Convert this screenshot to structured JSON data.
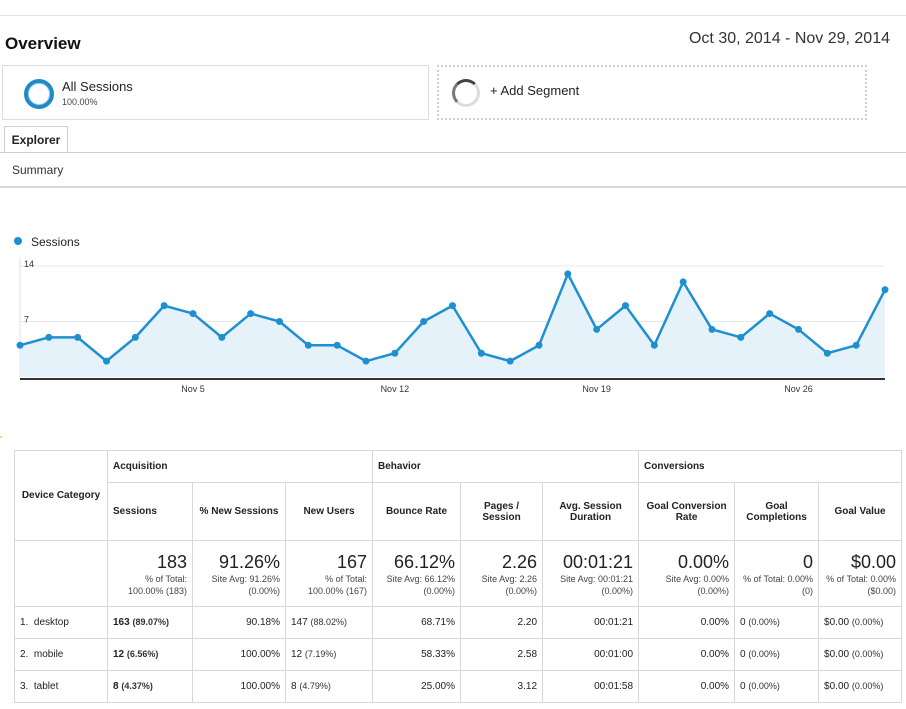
{
  "header": {
    "title": "Overview",
    "date_range": "Oct 30, 2014 - Nov 29, 2014"
  },
  "segments": [
    {
      "name": "All Sessions",
      "pct": "100.00%"
    },
    {
      "name": "+ Add Segment"
    }
  ],
  "tabs": {
    "explorer": "Explorer",
    "summary": "Summary"
  },
  "chart_data": {
    "type": "area",
    "series": [
      {
        "name": "Sessions",
        "values": [
          4,
          5,
          5,
          2,
          5,
          9,
          8,
          5,
          8,
          7,
          4,
          4,
          2,
          3,
          7,
          9,
          3,
          2,
          4,
          13,
          6,
          9,
          4,
          12,
          6,
          5,
          8,
          6,
          3,
          4,
          11
        ]
      }
    ],
    "x_tick_labels": [
      "Nov 5",
      "Nov 12",
      "Nov 19",
      "Nov 26"
    ],
    "x_tick_indices": [
      6,
      13,
      20,
      27
    ],
    "y_tick_labels": [
      "14",
      "7"
    ],
    "y_ticks": [
      14,
      7
    ],
    "ylim": [
      0,
      14
    ],
    "color": "#1e90d2",
    "fill": "#e6f2fa"
  },
  "table": {
    "device_category": "Device Category",
    "groups": {
      "acquisition": "Acquisition",
      "behavior": "Behavior",
      "conversions": "Conversions"
    },
    "columns": [
      "Sessions",
      "% New Sessions",
      "New Users",
      "Bounce Rate",
      "Pages / Session",
      "Avg. Session Duration",
      "Goal Conversion Rate",
      "Goal Completions",
      "Goal Value"
    ],
    "totals": [
      {
        "value": "183",
        "sub": "% of Total: 100.00% (183)"
      },
      {
        "value": "91.26%",
        "sub": "Site Avg: 91.26% (0.00%)"
      },
      {
        "value": "167",
        "sub": "% of Total: 100.00% (167)"
      },
      {
        "value": "66.12%",
        "sub": "Site Avg: 66.12% (0.00%)"
      },
      {
        "value": "2.26",
        "sub": "Site Avg: 2.26 (0.00%)"
      },
      {
        "value": "00:01:21",
        "sub": "Site Avg: 00:01:21 (0.00%)"
      },
      {
        "value": "0.00%",
        "sub": "Site Avg: 0.00% (0.00%)"
      },
      {
        "value": "0",
        "sub": "% of Total: 0.00% (0)"
      },
      {
        "value": "$0.00",
        "sub": "% of Total: 0.00% ($0.00)"
      }
    ],
    "rows": [
      {
        "idx": "1.",
        "name": "desktop",
        "sessions": "163",
        "sessions_pct": "(89.07%)",
        "new_pct": "90.18%",
        "new_users": "147",
        "new_users_pct": "(88.02%)",
        "bounce": "68.71%",
        "pages": "2.20",
        "duration": "00:01:21",
        "conv": "0.00%",
        "goal": "0",
        "goal_pct": "(0.00%)",
        "value": "$0.00",
        "value_pct": "(0.00%)"
      },
      {
        "idx": "2.",
        "name": "mobile",
        "sessions": "12",
        "sessions_pct": "(6.56%)",
        "new_pct": "100.00%",
        "new_users": "12",
        "new_users_pct": "(7.19%)",
        "bounce": "58.33%",
        "pages": "2.58",
        "duration": "00:01:00",
        "conv": "0.00%",
        "goal": "0",
        "goal_pct": "(0.00%)",
        "value": "$0.00",
        "value_pct": "(0.00%)"
      },
      {
        "idx": "3.",
        "name": "tablet",
        "sessions": "8",
        "sessions_pct": "(4.37%)",
        "new_pct": "100.00%",
        "new_users": "8",
        "new_users_pct": "(4.79%)",
        "bounce": "25.00%",
        "pages": "3.12",
        "duration": "00:01:58",
        "conv": "0.00%",
        "goal": "0",
        "goal_pct": "(0.00%)",
        "value": "$0.00",
        "value_pct": "(0.00%)"
      }
    ]
  }
}
